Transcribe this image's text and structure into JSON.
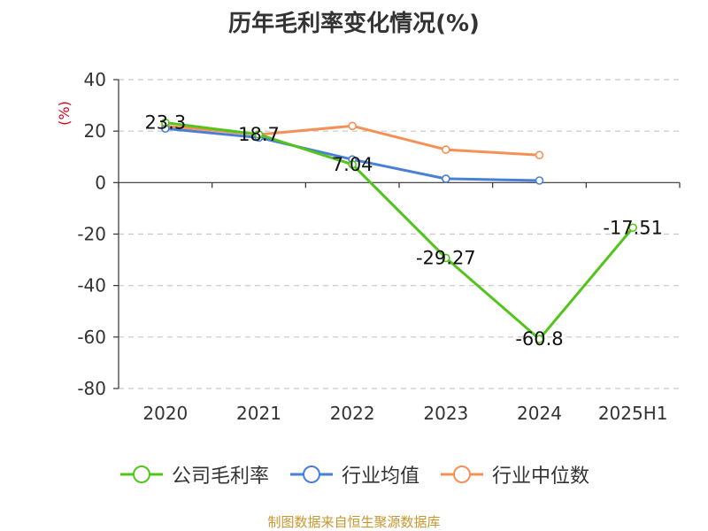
{
  "colors": {
    "company": "#52c41a",
    "industry_avg": "#4a7fd6",
    "industry_median": "#f59056",
    "ylabel": "#d9001b",
    "source": "#c8962e",
    "grid": "#c8c8c8",
    "axis": "#333333",
    "text": "#333333"
  },
  "footer": {
    "source": "制图数据来自恒生聚源数据库"
  },
  "chart_data": {
    "type": "line",
    "title": "历年毛利率变化情况(%)",
    "xlabel": "",
    "ylabel": "(%)",
    "categories": [
      "2020",
      "2021",
      "2022",
      "2023",
      "2024",
      "2025H1"
    ],
    "ylim": [
      -80,
      40
    ],
    "yticks": [
      40,
      20,
      0,
      -20,
      -40,
      -60,
      -80
    ],
    "ytick_labels": [
      "40",
      "20",
      "0",
      "-20",
      "-40",
      "-60",
      "-80"
    ],
    "grid": true,
    "legend_position": "bottom",
    "series": [
      {
        "name": "公司毛利率",
        "color": "#52c41a",
        "values": [
          23.3,
          18.7,
          7.04,
          -29.27,
          -60.8,
          -17.51
        ],
        "labels": [
          "23.3",
          "18.7",
          "7.04",
          "-29.27",
          "-60.8",
          "-17.51"
        ]
      },
      {
        "name": "行业均值",
        "color": "#4a7fd6",
        "values": [
          21.0,
          17.5,
          9.0,
          1.5,
          0.8,
          null
        ]
      },
      {
        "name": "行业中位数",
        "color": "#f59056",
        "values": [
          22.0,
          18.7,
          22.0,
          12.8,
          10.7,
          null
        ]
      }
    ]
  }
}
